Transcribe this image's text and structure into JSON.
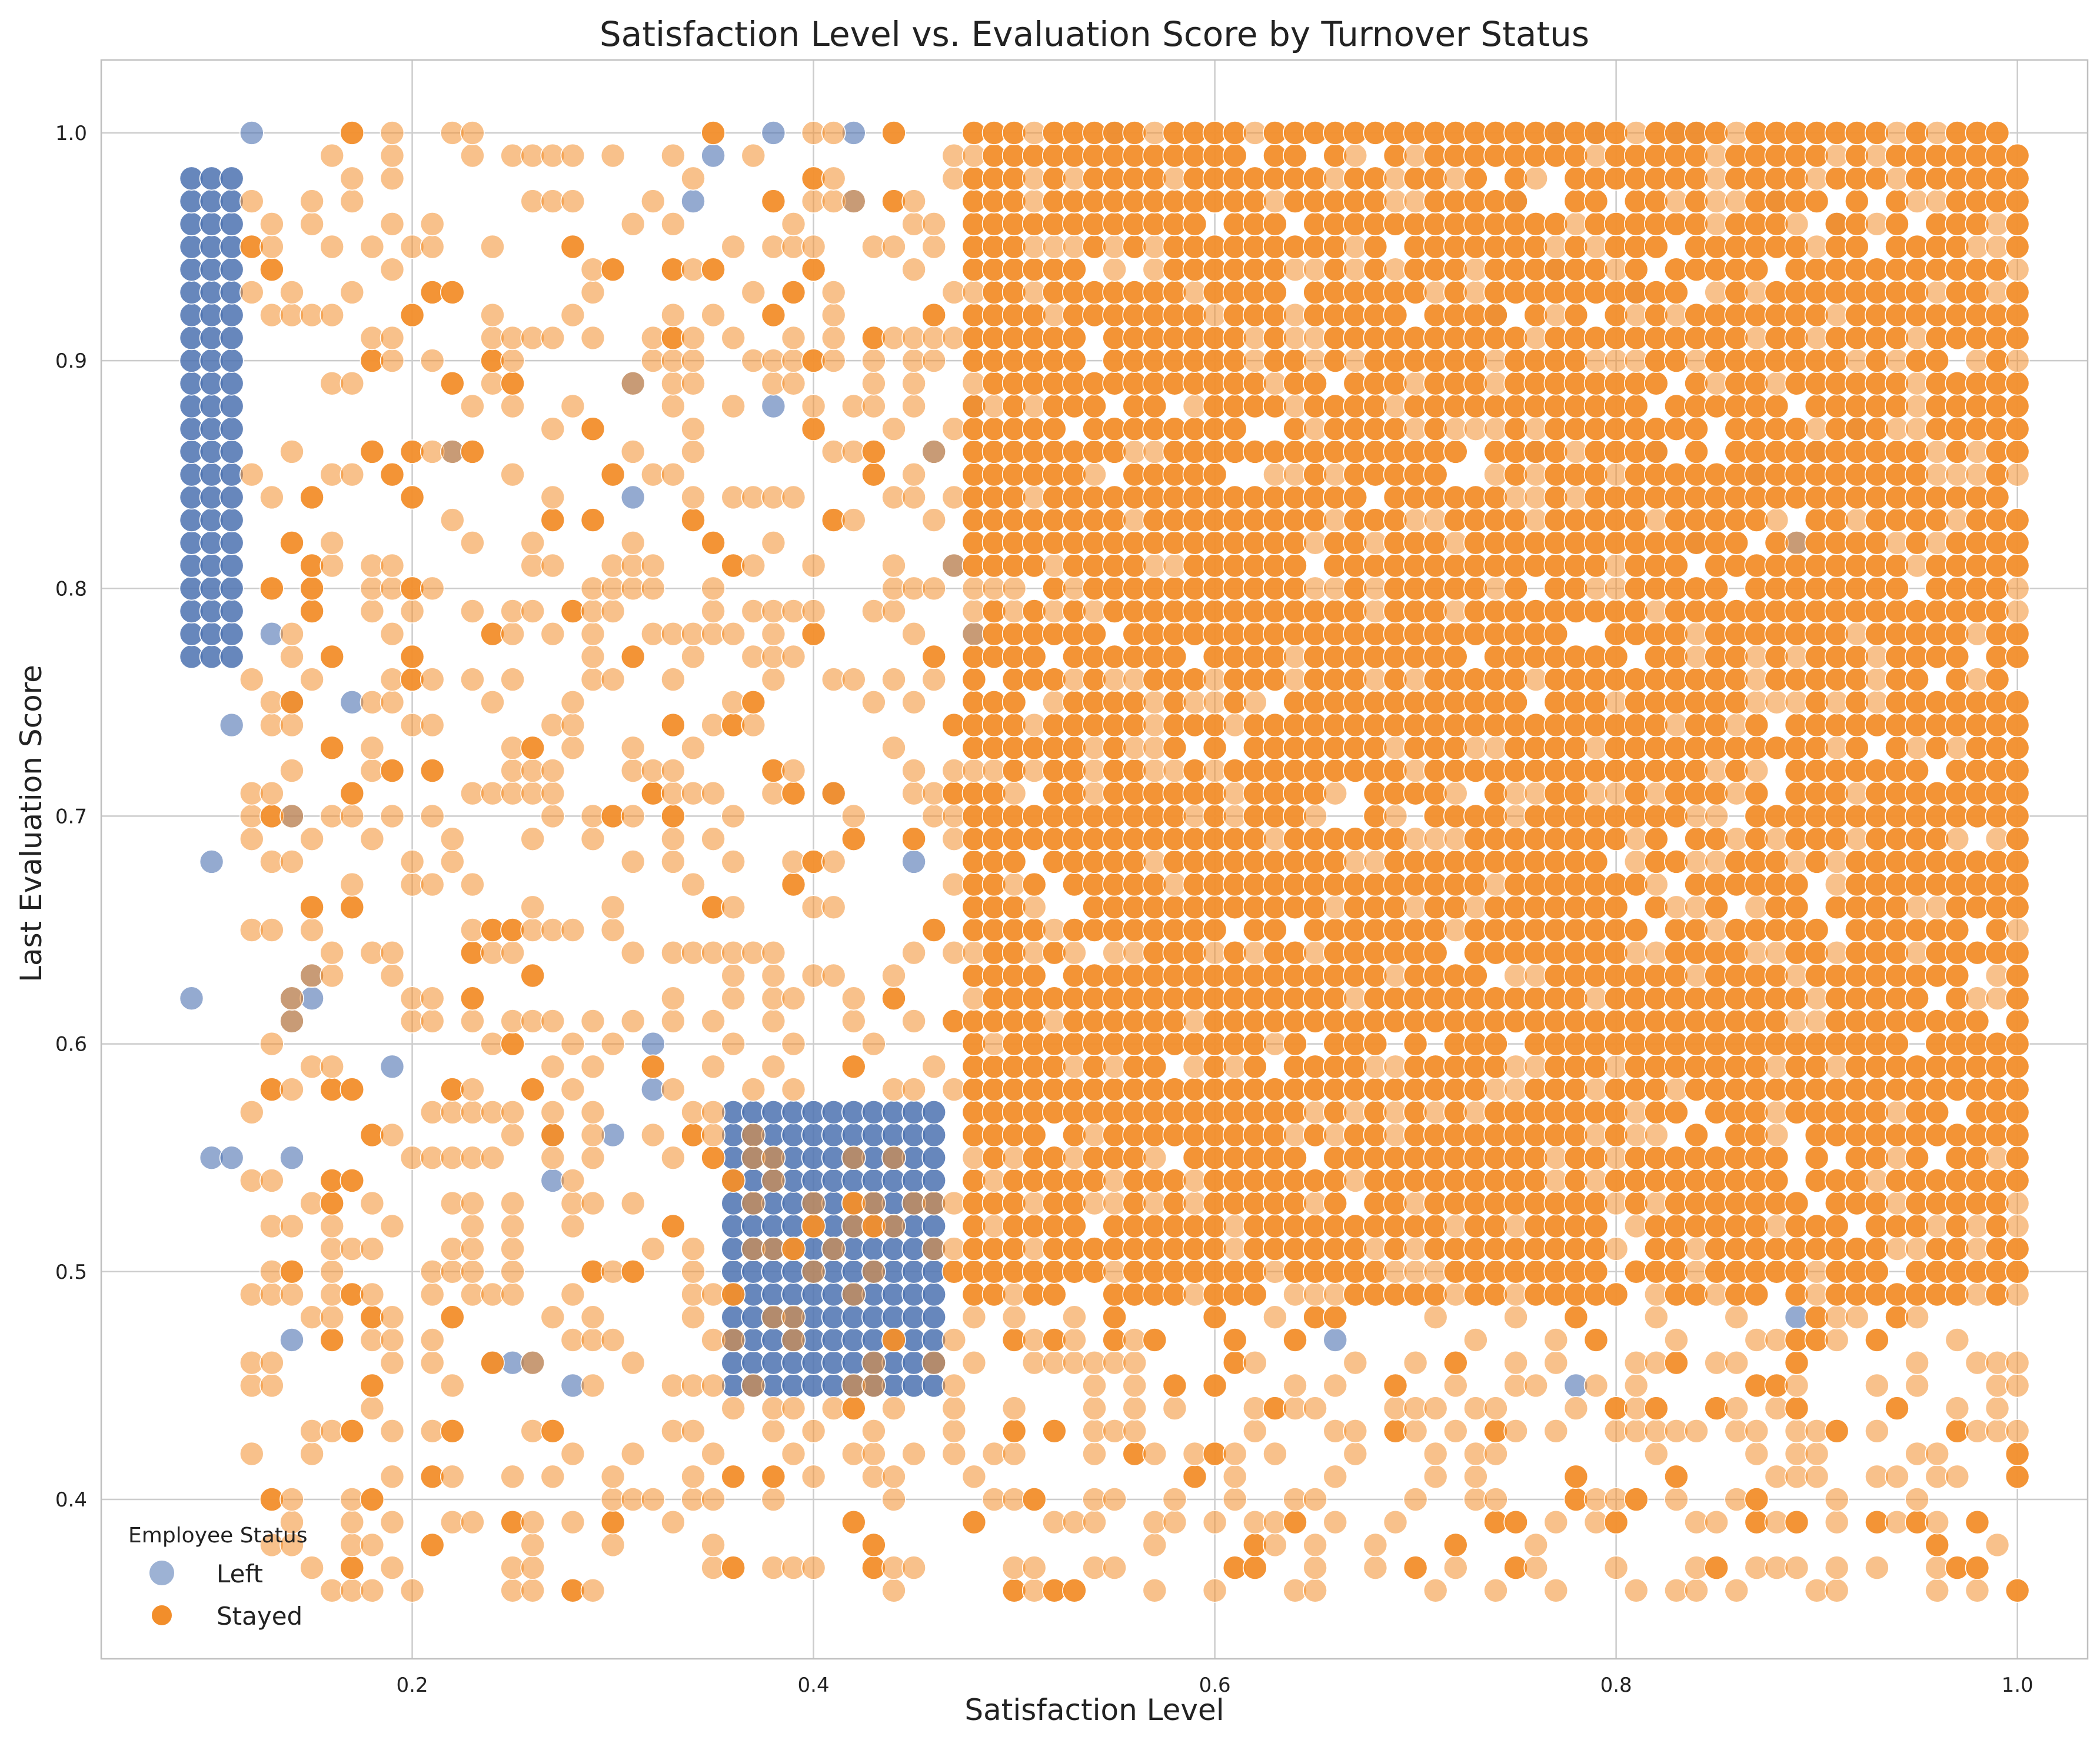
{
  "chart_data": {
    "type": "scatter",
    "title": "Satisfaction Level vs. Evaluation Score by Turnover Status",
    "xlabel": "Satisfaction Level",
    "ylabel": "Last Evaluation Score",
    "xlim": [
      0.045,
      1.035
    ],
    "ylim": [
      0.33,
      1.032
    ],
    "x_ticks": [
      "0.2",
      "0.4",
      "0.6",
      "0.8",
      "1.0"
    ],
    "x_tick_values": [
      0.2,
      0.4,
      0.6,
      0.8,
      1.0
    ],
    "y_ticks": [
      "0.4",
      "0.5",
      "0.6",
      "0.7",
      "0.8",
      "0.9",
      "1.0"
    ],
    "y_tick_values": [
      0.4,
      0.5,
      0.6,
      0.7,
      0.8,
      0.9,
      1.0
    ],
    "grid": true,
    "legend": {
      "title": "Employee Status",
      "placement": "lower-left",
      "entries": [
        {
          "label": "Left",
          "color": "#4c72b0"
        },
        {
          "label": "Stayed",
          "color": "#f28e2b"
        }
      ]
    },
    "series": [
      {
        "name": "Left",
        "color": "#4c72b0",
        "description": "Blue markers; three dense clusters",
        "clusters": [
          {
            "x_range": [
              0.09,
              0.11
            ],
            "y_range": [
              0.77,
              0.98
            ],
            "density": "very dense"
          },
          {
            "x_range": [
              0.36,
              0.46
            ],
            "y_range": [
              0.45,
              0.57
            ],
            "density": "very dense"
          },
          {
            "x_range": [
              0.72,
              0.92
            ],
            "y_range": [
              0.82,
              1.0
            ],
            "density": "scattered among orange"
          }
        ],
        "points": [
          [
            0.12,
            1.0
          ],
          [
            0.38,
            1.0
          ],
          [
            0.42,
            1.0
          ],
          [
            0.55,
            1.0
          ],
          [
            0.77,
            1.0
          ],
          [
            0.79,
            1.0
          ],
          [
            0.83,
            1.0
          ],
          [
            0.84,
            1.0
          ],
          [
            0.42,
            0.97
          ],
          [
            0.34,
            0.97
          ],
          [
            0.35,
            0.99
          ],
          [
            0.75,
            0.97
          ],
          [
            0.88,
            0.97
          ],
          [
            0.91,
            0.96
          ],
          [
            0.31,
            0.89
          ],
          [
            0.22,
            0.86
          ],
          [
            0.31,
            0.84
          ],
          [
            0.38,
            0.88
          ],
          [
            0.46,
            0.86
          ],
          [
            0.48,
            0.88
          ],
          [
            0.47,
            0.81
          ],
          [
            0.13,
            0.78
          ],
          [
            0.48,
            0.78
          ],
          [
            0.11,
            0.74
          ],
          [
            0.17,
            0.75
          ],
          [
            0.14,
            0.75
          ],
          [
            0.14,
            0.7
          ],
          [
            0.41,
            0.71
          ],
          [
            0.1,
            0.68
          ],
          [
            0.45,
            0.68
          ],
          [
            0.09,
            0.62
          ],
          [
            0.15,
            0.63
          ],
          [
            0.14,
            0.62
          ],
          [
            0.15,
            0.62
          ],
          [
            0.14,
            0.61
          ],
          [
            0.19,
            0.59
          ],
          [
            0.32,
            0.6
          ],
          [
            0.32,
            0.58
          ],
          [
            0.1,
            0.55
          ],
          [
            0.11,
            0.55
          ],
          [
            0.14,
            0.55
          ],
          [
            0.27,
            0.56
          ],
          [
            0.27,
            0.54
          ],
          [
            0.3,
            0.56
          ],
          [
            0.24,
            0.46
          ],
          [
            0.25,
            0.46
          ],
          [
            0.26,
            0.46
          ],
          [
            0.28,
            0.45
          ],
          [
            0.14,
            0.47
          ],
          [
            0.66,
            0.47
          ],
          [
            0.89,
            0.48
          ],
          [
            0.78,
            0.45
          ],
          [
            0.82,
            0.86
          ],
          [
            0.89,
            0.82
          ],
          [
            0.92,
            0.87
          ],
          [
            0.77,
            0.94
          ],
          [
            0.81,
            0.93
          ],
          [
            0.74,
            0.92
          ],
          [
            0.84,
            0.82
          ],
          [
            0.76,
            0.86
          ],
          [
            0.87,
            0.85
          ],
          [
            0.9,
            0.86
          ]
        ]
      },
      {
        "name": "Stayed",
        "color": "#f28e2b",
        "description": "Orange markers; dense block covering the right side plus sparse scatter on the left",
        "clusters": [
          {
            "x_range": [
              0.48,
              1.0
            ],
            "y_range": [
              0.49,
              1.0
            ],
            "density": "very dense"
          },
          {
            "x_range": [
              0.48,
              1.0
            ],
            "y_range": [
              0.36,
              0.49
            ],
            "density": "moderate"
          },
          {
            "x_range": [
              0.12,
              0.47
            ],
            "y_range": [
              0.36,
              1.0
            ],
            "density": "sparse"
          }
        ]
      }
    ]
  }
}
